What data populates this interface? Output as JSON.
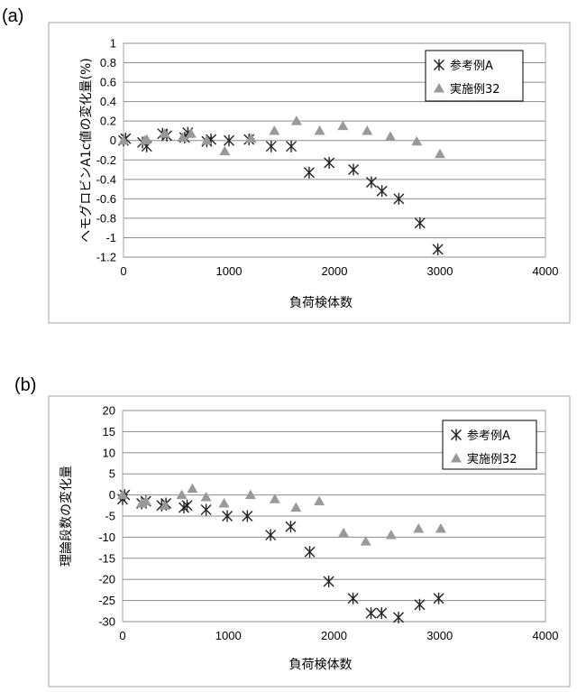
{
  "chart_data": [
    {
      "panel": "(a)",
      "type": "scatter",
      "xlabel": "負荷検体数",
      "ylabel": "ヘモグロビンA1c値の変化量(%)",
      "xlim": [
        0,
        4000
      ],
      "ylim": [
        -1.2,
        1
      ],
      "xticks": [
        0,
        1000,
        2000,
        3000,
        4000
      ],
      "yticks": [
        1,
        0.8,
        0.6,
        0.4,
        0.2,
        0,
        -0.2,
        -0.4,
        -0.6,
        -0.8,
        -1,
        -1.2
      ],
      "grid": true,
      "legend_position": "top-right",
      "series": [
        {
          "name": "参考例A",
          "marker": "asterisk",
          "color": "#222222",
          "points": [
            [
              0,
              0.0
            ],
            [
              20,
              0.02
            ],
            [
              180,
              -0.02
            ],
            [
              220,
              -0.06
            ],
            [
              370,
              0.07
            ],
            [
              410,
              0.05
            ],
            [
              580,
              0.03
            ],
            [
              610,
              0.08
            ],
            [
              790,
              -0.01
            ],
            [
              830,
              0.01
            ],
            [
              1000,
              0.0
            ],
            [
              1190,
              0.01
            ],
            [
              1400,
              -0.06
            ],
            [
              1590,
              -0.06
            ],
            [
              1760,
              -0.33
            ],
            [
              1950,
              -0.23
            ],
            [
              2180,
              -0.3
            ],
            [
              2350,
              -0.43
            ],
            [
              2450,
              -0.52
            ],
            [
              2610,
              -0.6
            ],
            [
              2810,
              -0.85
            ],
            [
              2980,
              -1.12
            ]
          ]
        },
        {
          "name": "実施例32",
          "marker": "triangle",
          "color": "#999999",
          "points": [
            [
              0,
              0.0
            ],
            [
              200,
              0.0
            ],
            [
              220,
              0.01
            ],
            [
              390,
              0.07
            ],
            [
              560,
              0.03
            ],
            [
              640,
              0.07
            ],
            [
              790,
              0.0
            ],
            [
              960,
              -0.11
            ],
            [
              1210,
              0.02
            ],
            [
              1430,
              0.1
            ],
            [
              1640,
              0.2
            ],
            [
              1860,
              0.1
            ],
            [
              2080,
              0.15
            ],
            [
              2310,
              0.1
            ],
            [
              2530,
              0.04
            ],
            [
              2780,
              -0.01
            ],
            [
              3000,
              -0.14
            ]
          ]
        }
      ]
    },
    {
      "panel": "(b)",
      "type": "scatter",
      "xlabel": "負荷検体数",
      "ylabel": "理論段数の変化量",
      "xlim": [
        0,
        4000
      ],
      "ylim": [
        -30,
        20
      ],
      "xticks": [
        0,
        1000,
        2000,
        3000,
        4000
      ],
      "yticks": [
        20,
        15,
        10,
        5,
        0,
        -5,
        -10,
        -15,
        -20,
        -25,
        -30
      ],
      "grid": true,
      "legend_position": "top-right",
      "series": [
        {
          "name": "参考例A",
          "marker": "asterisk",
          "color": "#222222",
          "points": [
            [
              0,
              -1.0
            ],
            [
              20,
              0.0
            ],
            [
              180,
              -2.0
            ],
            [
              220,
              -1.5
            ],
            [
              370,
              -2.5
            ],
            [
              410,
              -2.0
            ],
            [
              580,
              -3.0
            ],
            [
              610,
              -2.5
            ],
            [
              790,
              -3.5
            ],
            [
              990,
              -5.0
            ],
            [
              1180,
              -5.0
            ],
            [
              1400,
              -9.5
            ],
            [
              1590,
              -7.5
            ],
            [
              1770,
              -13.5
            ],
            [
              1950,
              -20.5
            ],
            [
              2180,
              -24.5
            ],
            [
              2350,
              -28.0
            ],
            [
              2450,
              -28.0
            ],
            [
              2610,
              -29.0
            ],
            [
              2810,
              -26.0
            ],
            [
              2990,
              -24.5
            ]
          ]
        },
        {
          "name": "実施例32",
          "marker": "triangle",
          "color": "#999999",
          "points": [
            [
              0,
              0.0
            ],
            [
              180,
              -2.0
            ],
            [
              220,
              -1.5
            ],
            [
              400,
              -2.5
            ],
            [
              560,
              0.0
            ],
            [
              660,
              1.5
            ],
            [
              790,
              -0.5
            ],
            [
              960,
              -2.0
            ],
            [
              1210,
              0.0
            ],
            [
              1440,
              -1.0
            ],
            [
              1640,
              -3.0
            ],
            [
              1860,
              -1.5
            ],
            [
              2090,
              -9.0
            ],
            [
              2300,
              -11.0
            ],
            [
              2540,
              -9.5
            ],
            [
              2800,
              -8.0
            ],
            [
              3010,
              -8.0
            ]
          ]
        }
      ]
    }
  ]
}
